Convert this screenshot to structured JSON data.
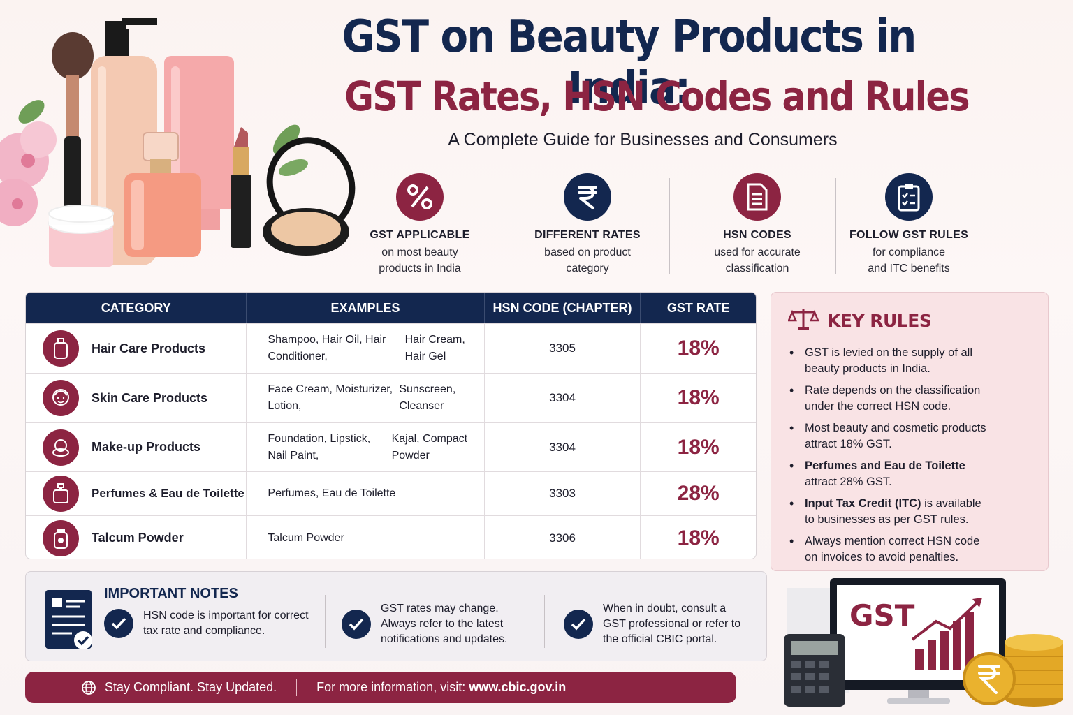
{
  "header": {
    "title_line1": "GST on Beauty Products in India:",
    "title_line2": "GST Rates, HSN Codes and Rules",
    "subtitle": "A Complete Guide for Businesses and Consumers"
  },
  "features": [
    {
      "icon": "percent-icon",
      "title": "GST APPLICABLE",
      "desc1": "on most beauty",
      "desc2": "products in India"
    },
    {
      "icon": "rupee-icon",
      "title": "DIFFERENT RATES",
      "desc1": "based on product",
      "desc2": "category"
    },
    {
      "icon": "document-icon",
      "title": "HSN CODES",
      "desc1": "used for accurate",
      "desc2": "classification"
    },
    {
      "icon": "clipboard-check-icon",
      "title": "FOLLOW GST RULES",
      "desc1": "for compliance",
      "desc2": "and ITC benefits"
    }
  ],
  "table": {
    "headers": [
      "CATEGORY",
      "EXAMPLES",
      "HSN CODE (CHAPTER)",
      "GST RATE"
    ],
    "rows": [
      {
        "category": "Hair Care Products",
        "examples1": "Shampoo, Hair Oil, Hair Conditioner,",
        "examples2": "Hair Cream, Hair Gel",
        "hsn": "3305",
        "rate": "18%",
        "icon": "bottle-icon"
      },
      {
        "category": "Skin Care Products",
        "examples1": "Face Cream, Moisturizer, Lotion,",
        "examples2": "Sunscreen, Cleanser",
        "hsn": "3304",
        "rate": "18%",
        "icon": "face-icon"
      },
      {
        "category": "Make-up Products",
        "examples1": "Foundation, Lipstick, Nail Paint,",
        "examples2": "Kajal, Compact Powder",
        "hsn": "3304",
        "rate": "18%",
        "icon": "compact-icon"
      },
      {
        "category": "Perfumes & Eau de Toilette",
        "examples1": "Perfumes, Eau de Toilette",
        "examples2": "",
        "hsn": "3303",
        "rate": "28%",
        "icon": "perfume-icon"
      },
      {
        "category": "Talcum Powder",
        "examples1": "Talcum Powder",
        "examples2": "",
        "hsn": "3306",
        "rate": "18%",
        "icon": "powder-jar-icon"
      }
    ]
  },
  "key_rules": {
    "title": "KEY RULES",
    "items": [
      {
        "lead": "",
        "line1": "GST is levied on the supply of all",
        "line2": "beauty products in India."
      },
      {
        "lead": "",
        "line1": "Rate depends on the classification",
        "line2": "under the correct HSN code."
      },
      {
        "lead": "",
        "line1": "Most beauty and cosmetic products",
        "line2": "attract 18% GST."
      },
      {
        "lead": "Perfumes and Eau de Toilette",
        "line1": "",
        "line2": "attract 28% GST."
      },
      {
        "lead": "Input Tax Credit (ITC)",
        "line1": " is available",
        "line2": "to businesses as per GST rules."
      },
      {
        "lead": "",
        "line1": "Always mention correct HSN code",
        "line2": "on invoices to avoid penalties."
      }
    ]
  },
  "notes": {
    "title": "IMPORTANT NOTES",
    "items": [
      {
        "line1": "HSN code is important for correct",
        "line2": "tax rate and compliance.",
        "line3": ""
      },
      {
        "line1": "GST rates may change.",
        "line2": "Always refer to the latest",
        "line3": "notifications and updates."
      },
      {
        "line1": "When in doubt, consult a",
        "line2": "GST professional or refer to",
        "line3": "the official CBIC portal."
      }
    ]
  },
  "footer": {
    "tagline": "Stay Compliant. Stay Updated.",
    "info_prefix": "For more information, visit: ",
    "url": "www.cbic.gov.in"
  },
  "art": {
    "monitor_text": "GST"
  },
  "colors": {
    "navy": "#13274f",
    "maroon": "#8c2442",
    "pink_panel": "#f9e3e5"
  }
}
